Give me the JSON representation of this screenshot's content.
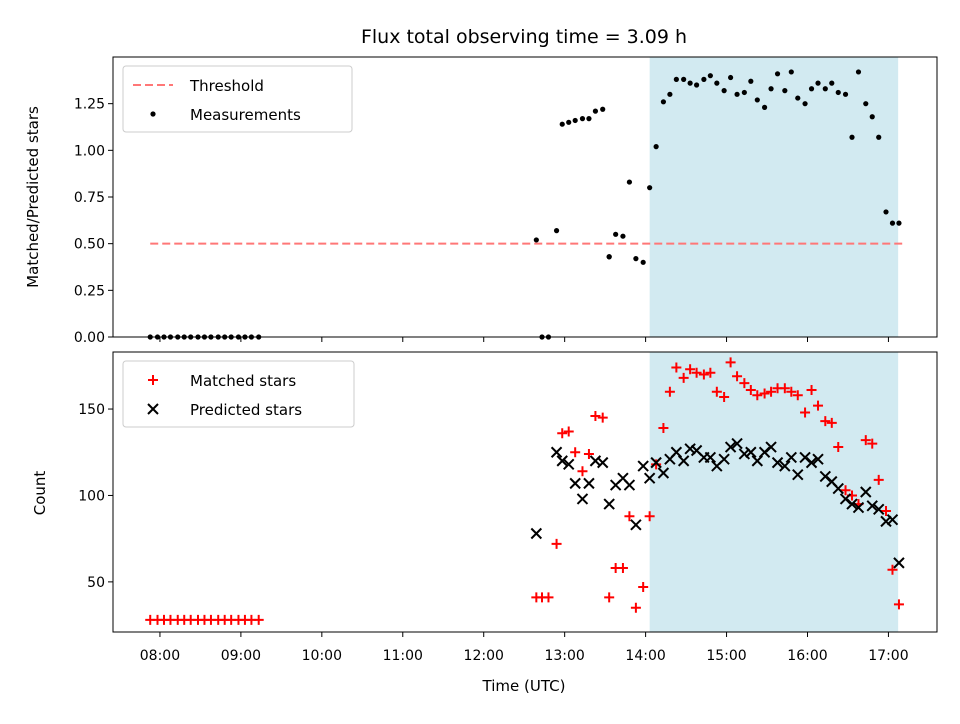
{
  "title": "Flux total observing time = 3.09 h",
  "colors": {
    "threshold": "#ff7777",
    "measurements": "#000000",
    "matched": "#ff0000",
    "predicted": "#000000",
    "shade": "#add8e6"
  },
  "chart_data": [
    {
      "type": "scatter",
      "panel": "top",
      "ylabel": "Matched/Predicted stars",
      "xlabel": "",
      "xlim_hours": [
        7.42,
        17.6
      ],
      "ylim": [
        0,
        1.5
      ],
      "yticks": [
        "0.00",
        "0.25",
        "0.50",
        "0.75",
        "1.00",
        "1.25"
      ],
      "yticks_values": [
        0,
        0.25,
        0.5,
        0.75,
        1.0,
        1.25
      ],
      "shaded_span_hours": [
        14.05,
        17.12
      ],
      "legend": [
        {
          "label": "Threshold",
          "style": "dashed-line"
        },
        {
          "label": "Measurements",
          "style": "dot"
        }
      ],
      "legend_position": "top-left",
      "threshold": {
        "y": 0.5,
        "x_range_hours": [
          7.88,
          17.17
        ]
      },
      "series": [
        {
          "name": "Measurements",
          "x_hours": [
            7.88,
            7.97,
            8.05,
            8.13,
            8.22,
            8.3,
            8.38,
            8.47,
            8.55,
            8.63,
            8.72,
            8.8,
            8.88,
            8.97,
            9.05,
            9.13,
            9.22,
            12.65,
            12.72,
            12.8,
            12.9,
            12.97,
            13.05,
            13.13,
            13.22,
            13.3,
            13.38,
            13.47,
            13.55,
            13.55,
            13.63,
            13.72,
            13.8,
            13.88,
            13.97,
            14.05,
            14.13,
            14.22,
            14.3,
            14.38,
            14.47,
            14.55,
            14.63,
            14.72,
            14.8,
            14.88,
            14.97,
            15.05,
            15.13,
            15.22,
            15.3,
            15.38,
            15.47,
            15.55,
            15.63,
            15.72,
            15.8,
            15.88,
            15.97,
            16.05,
            16.13,
            16.22,
            16.3,
            16.38,
            16.47,
            16.55,
            16.63,
            16.72,
            16.8,
            16.88,
            16.97,
            17.05,
            17.13
          ],
          "y": [
            0,
            0,
            0,
            0,
            0,
            0,
            0,
            0,
            0,
            0,
            0,
            0,
            0,
            0,
            0,
            0,
            0,
            0.52,
            0,
            0,
            0.57,
            1.14,
            1.15,
            1.16,
            1.17,
            1.17,
            1.21,
            1.22,
            0.43,
            0.43,
            0.55,
            0.54,
            0.83,
            0.42,
            0.4,
            0.8,
            1.02,
            1.26,
            1.3,
            1.38,
            1.38,
            1.36,
            1.35,
            1.38,
            1.4,
            1.36,
            1.32,
            1.39,
            1.3,
            1.31,
            1.37,
            1.27,
            1.23,
            1.33,
            1.41,
            1.32,
            1.42,
            1.28,
            1.25,
            1.33,
            1.36,
            1.33,
            1.36,
            1.31,
            1.3,
            1.07,
            1.42,
            1.25,
            1.18,
            1.07,
            0.67,
            0.61,
            0.61
          ]
        }
      ]
    },
    {
      "type": "scatter",
      "panel": "bottom",
      "ylabel": "Count",
      "xlabel": "Time (UTC)",
      "xlim_hours": [
        7.42,
        17.6
      ],
      "ylim": [
        21,
        183
      ],
      "yticks": [
        "50",
        "100",
        "150"
      ],
      "yticks_values": [
        50,
        100,
        150
      ],
      "xticks": [
        "08:00",
        "09:00",
        "10:00",
        "11:00",
        "12:00",
        "13:00",
        "14:00",
        "15:00",
        "16:00",
        "17:00"
      ],
      "xticks_hours": [
        8,
        9,
        10,
        11,
        12,
        13,
        14,
        15,
        16,
        17
      ],
      "shaded_span_hours": [
        14.05,
        17.12
      ],
      "legend": [
        {
          "label": "Matched stars",
          "style": "plus"
        },
        {
          "label": "Predicted stars",
          "style": "x"
        }
      ],
      "legend_position": "top-left",
      "series": [
        {
          "name": "Matched stars",
          "x_hours": [
            7.88,
            7.97,
            8.05,
            8.13,
            8.22,
            8.3,
            8.38,
            8.47,
            8.55,
            8.63,
            8.72,
            8.8,
            8.88,
            8.97,
            9.05,
            9.13,
            9.22,
            12.65,
            12.72,
            12.8,
            12.9,
            12.97,
            13.05,
            13.13,
            13.22,
            13.3,
            13.38,
            13.47,
            13.55,
            13.63,
            13.72,
            13.8,
            13.88,
            13.97,
            14.05,
            14.13,
            14.22,
            14.3,
            14.38,
            14.47,
            14.55,
            14.63,
            14.72,
            14.8,
            14.88,
            14.97,
            15.05,
            15.13,
            15.22,
            15.3,
            15.38,
            15.47,
            15.55,
            15.63,
            15.72,
            15.8,
            15.88,
            15.97,
            16.05,
            16.13,
            16.22,
            16.3,
            16.38,
            16.47,
            16.55,
            16.63,
            16.72,
            16.8,
            16.88,
            16.97,
            17.05,
            17.13
          ],
          "y": [
            28,
            28,
            28,
            28,
            28,
            28,
            28,
            28,
            28,
            28,
            28,
            28,
            28,
            28,
            28,
            28,
            28,
            41,
            41,
            41,
            72,
            136,
            137,
            125,
            114,
            124,
            146,
            145,
            41,
            58,
            58,
            88,
            35,
            47,
            88,
            118,
            139,
            160,
            174,
            168,
            173,
            171,
            170,
            171,
            160,
            157,
            177,
            169,
            165,
            161,
            158,
            159,
            160,
            162,
            162,
            160,
            158,
            148,
            161,
            152,
            143,
            142,
            128,
            103,
            100,
            95,
            132,
            130,
            109,
            91,
            57,
            37
          ]
        },
        {
          "name": "Predicted stars",
          "x_hours": [
            12.65,
            12.9,
            12.97,
            13.05,
            13.13,
            13.22,
            13.3,
            13.38,
            13.47,
            13.55,
            13.63,
            13.72,
            13.8,
            13.88,
            13.97,
            14.05,
            14.13,
            14.22,
            14.3,
            14.38,
            14.47,
            14.55,
            14.63,
            14.72,
            14.8,
            14.88,
            14.97,
            15.05,
            15.13,
            15.22,
            15.3,
            15.38,
            15.47,
            15.55,
            15.63,
            15.72,
            15.8,
            15.88,
            15.97,
            16.05,
            16.13,
            16.22,
            16.3,
            16.38,
            16.47,
            16.55,
            16.63,
            16.72,
            16.8,
            16.88,
            16.97,
            17.05,
            17.13
          ],
          "y": [
            78,
            125,
            120,
            118,
            107,
            98,
            107,
            120,
            119,
            95,
            106,
            110,
            106,
            83,
            117,
            110,
            119,
            113,
            121,
            125,
            120,
            127,
            126,
            122,
            122,
            117,
            121,
            128,
            130,
            124,
            125,
            120,
            125,
            128,
            119,
            117,
            122,
            112,
            122,
            119,
            121,
            111,
            108,
            104,
            98,
            95,
            93,
            102,
            94,
            92,
            85,
            86,
            61
          ]
        }
      ]
    }
  ]
}
